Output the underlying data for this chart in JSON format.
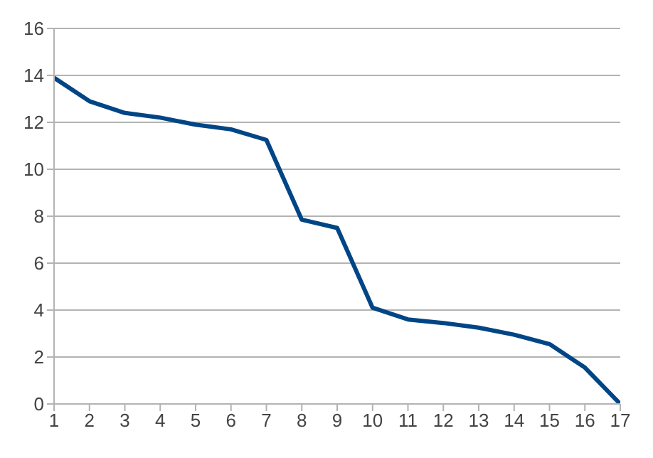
{
  "chart_data": {
    "type": "line",
    "x": [
      1,
      2,
      3,
      4,
      5,
      6,
      7,
      8,
      9,
      10,
      11,
      12,
      13,
      14,
      15,
      16,
      17
    ],
    "series": [
      {
        "color": "#004586",
        "values": [
          13.9,
          12.9,
          12.4,
          12.2,
          11.9,
          11.7,
          11.25,
          7.85,
          7.5,
          4.1,
          3.6,
          3.45,
          3.25,
          2.95,
          2.55,
          1.55,
          0
        ]
      }
    ],
    "xlim": [
      1,
      17
    ],
    "xticks": [
      1,
      2,
      3,
      4,
      5,
      6,
      7,
      8,
      9,
      10,
      11,
      12,
      13,
      14,
      15,
      16,
      17
    ],
    "ylim": [
      0,
      16
    ],
    "yticks": [
      0,
      2,
      4,
      6,
      8,
      10,
      12,
      14,
      16
    ],
    "grid": "y",
    "legend": false,
    "marker": "none",
    "line_style": "solid"
  }
}
